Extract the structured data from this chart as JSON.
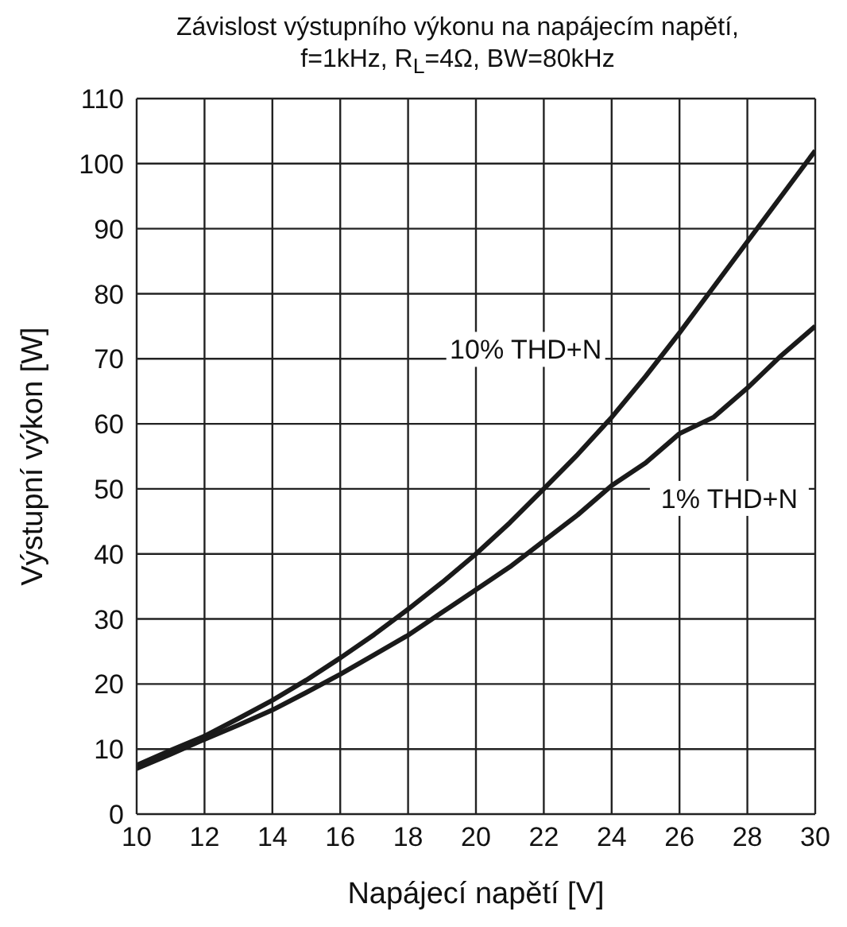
{
  "chart_data": {
    "type": "line",
    "title": "Závislost výstupního výkonu na napájecím napětí, f=1kHz, R$_{L}$=4Ω, BW=80kHz",
    "xlabel": "Napájecí napětí [V]",
    "ylabel": "Výstupní výkon [W]",
    "x": [
      10,
      11,
      12,
      13,
      14,
      15,
      16,
      17,
      18,
      19,
      20,
      21,
      22,
      23,
      24,
      25,
      26,
      27,
      28,
      29,
      30
    ],
    "series": [
      {
        "name": "10% THD+N",
        "color": "#1a1a1a",
        "values": [
          7.5,
          9.8,
          12,
          14.7,
          17.5,
          20.6,
          24,
          27.6,
          31.5,
          35.6,
          40,
          44.8,
          50,
          55.3,
          61,
          67.3,
          74,
          81,
          88,
          95,
          102
        ]
      },
      {
        "name": "1% THD+N",
        "color": "#1a1a1a",
        "values": [
          7,
          9.2,
          11.5,
          13.7,
          16,
          18.7,
          21.5,
          24.5,
          27.5,
          31,
          34.5,
          38,
          42,
          46,
          50.5,
          54,
          58.5,
          61,
          65.5,
          70.5,
          75
        ]
      }
    ],
    "xlim": [
      10,
      30
    ],
    "xticks": [
      10,
      12,
      14,
      16,
      18,
      20,
      22,
      24,
      26,
      28,
      30
    ],
    "ylim": [
      0,
      110
    ],
    "yticks": [
      0,
      10,
      20,
      30,
      40,
      50,
      60,
      70,
      80,
      90,
      100,
      110
    ],
    "grid": true,
    "legend": false,
    "marker": "none",
    "line_style": "solid"
  }
}
